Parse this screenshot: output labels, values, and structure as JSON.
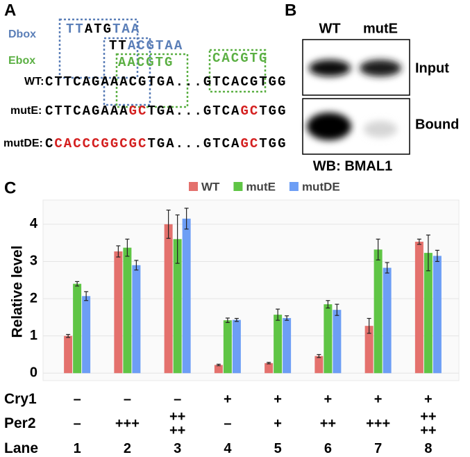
{
  "panel_a": {
    "label": "A",
    "dbox_label": "Dbox",
    "ebox_label": "Ebox",
    "dbox": [
      [
        {
          "text": "TT",
          "color": "#5b7fb8"
        },
        {
          "text": "ATG",
          "color": "#000000"
        },
        {
          "text": "TAA",
          "color": "#5b7fb8"
        }
      ],
      [
        {
          "text": "TT",
          "color": "#000000"
        },
        {
          "text": "ACGTAA",
          "color": "#5b7fb8"
        }
      ]
    ],
    "ebox": [
      [
        {
          "text": "AACGTG",
          "color": "#5cb044"
        }
      ],
      [
        {
          "text": "CACGTG",
          "color": "#5cb044"
        }
      ]
    ],
    "sequences": [
      {
        "name": "WT:",
        "segments": [
          {
            "text": "CTTCAGAAACGTGA...GTCACGTGG",
            "color": "#000000"
          }
        ]
      },
      {
        "name": "mutE:",
        "segments": [
          {
            "text": "CTTCAGAAA",
            "color": "#000000"
          },
          {
            "text": "GC",
            "color": "#d42020"
          },
          {
            "text": "TGA...GTCA",
            "color": "#000000"
          },
          {
            "text": "GC",
            "color": "#d42020"
          },
          {
            "text": "TGG",
            "color": "#000000"
          }
        ]
      },
      {
        "name": "mutDE:",
        "segments": [
          {
            "text": "C",
            "color": "#000000"
          },
          {
            "text": "CACCCGGCGC",
            "color": "#d42020"
          },
          {
            "text": "TGA...GTCA",
            "color": "#000000"
          },
          {
            "text": "GC",
            "color": "#d42020"
          },
          {
            "text": "TGG",
            "color": "#000000"
          }
        ]
      }
    ]
  },
  "panel_b": {
    "label": "B",
    "lanes": [
      "WT",
      "mutE"
    ],
    "rows": [
      "Input",
      "Bound"
    ],
    "footer": "WB: BMAL1"
  },
  "chart_data": {
    "type": "bar",
    "panel_label": "C",
    "y_label": "Relative level",
    "categories": [
      "1",
      "2",
      "3",
      "4",
      "5",
      "6",
      "7",
      "8"
    ],
    "series": [
      {
        "name": "WT",
        "color": "#e4716d",
        "values": [
          1.0,
          3.27,
          4.0,
          0.22,
          0.27,
          0.46,
          1.27,
          3.53
        ],
        "errors": [
          0.04,
          0.15,
          0.38,
          0.02,
          0.02,
          0.04,
          0.2,
          0.07
        ]
      },
      {
        "name": "mutE",
        "color": "#5fc545",
        "values": [
          2.4,
          3.37,
          3.6,
          1.42,
          1.57,
          1.85,
          3.32,
          3.23
        ],
        "errors": [
          0.06,
          0.23,
          0.65,
          0.06,
          0.15,
          0.1,
          0.28,
          0.48
        ]
      },
      {
        "name": "mutDE",
        "color": "#6d9ef5",
        "values": [
          2.07,
          2.9,
          4.15,
          1.43,
          1.48,
          1.7,
          2.83,
          3.15
        ],
        "errors": [
          0.12,
          0.13,
          0.28,
          0.04,
          0.06,
          0.15,
          0.14,
          0.15
        ]
      }
    ],
    "ylim": [
      -0.2,
      4.65
    ],
    "yticks": [
      0,
      1,
      2,
      3,
      4
    ],
    "grid": true,
    "table": [
      {
        "name": "Cry1",
        "cells": [
          "–",
          "–",
          "–",
          "+",
          "+",
          "+",
          "+",
          "+"
        ]
      },
      {
        "name": "Per2",
        "cells": [
          "–",
          "+++",
          "++\n++",
          "–",
          "+",
          "++",
          "+++",
          "++\n++"
        ]
      },
      {
        "name": "Lane"
      }
    ]
  }
}
